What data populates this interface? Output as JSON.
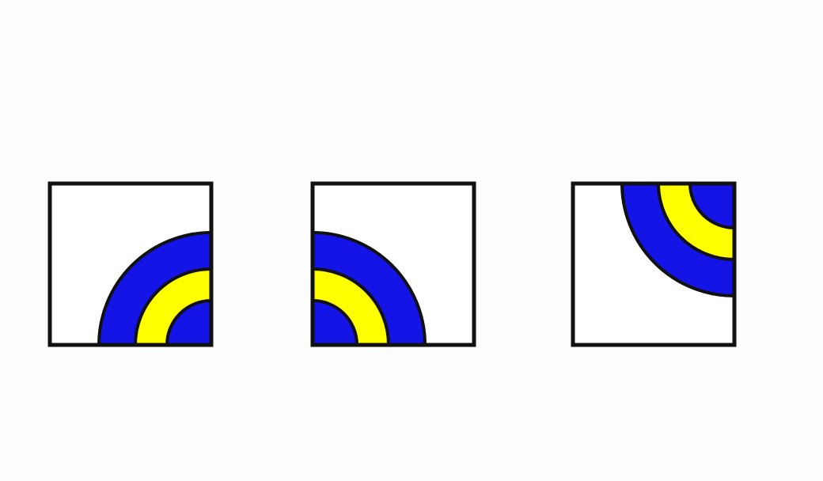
{
  "colors": {
    "background": "#fdfdfd",
    "outline": "#111111",
    "outer_ring": "#1414e6",
    "middle_ring": "#ffff00",
    "inner_disc": "#1414e6",
    "tile_fill": "#ffffff"
  },
  "tiles": [
    {
      "id": "tile-1",
      "quadrant_corner": "bottom-right",
      "rings": [
        "outer_ring",
        "middle_ring",
        "inner_disc"
      ]
    },
    {
      "id": "tile-2",
      "quadrant_corner": "bottom-left",
      "rings": [
        "outer_ring",
        "middle_ring",
        "inner_disc"
      ]
    },
    {
      "id": "tile-3",
      "quadrant_corner": "top-right",
      "rings": [
        "outer_ring",
        "middle_ring",
        "inner_disc"
      ]
    }
  ]
}
